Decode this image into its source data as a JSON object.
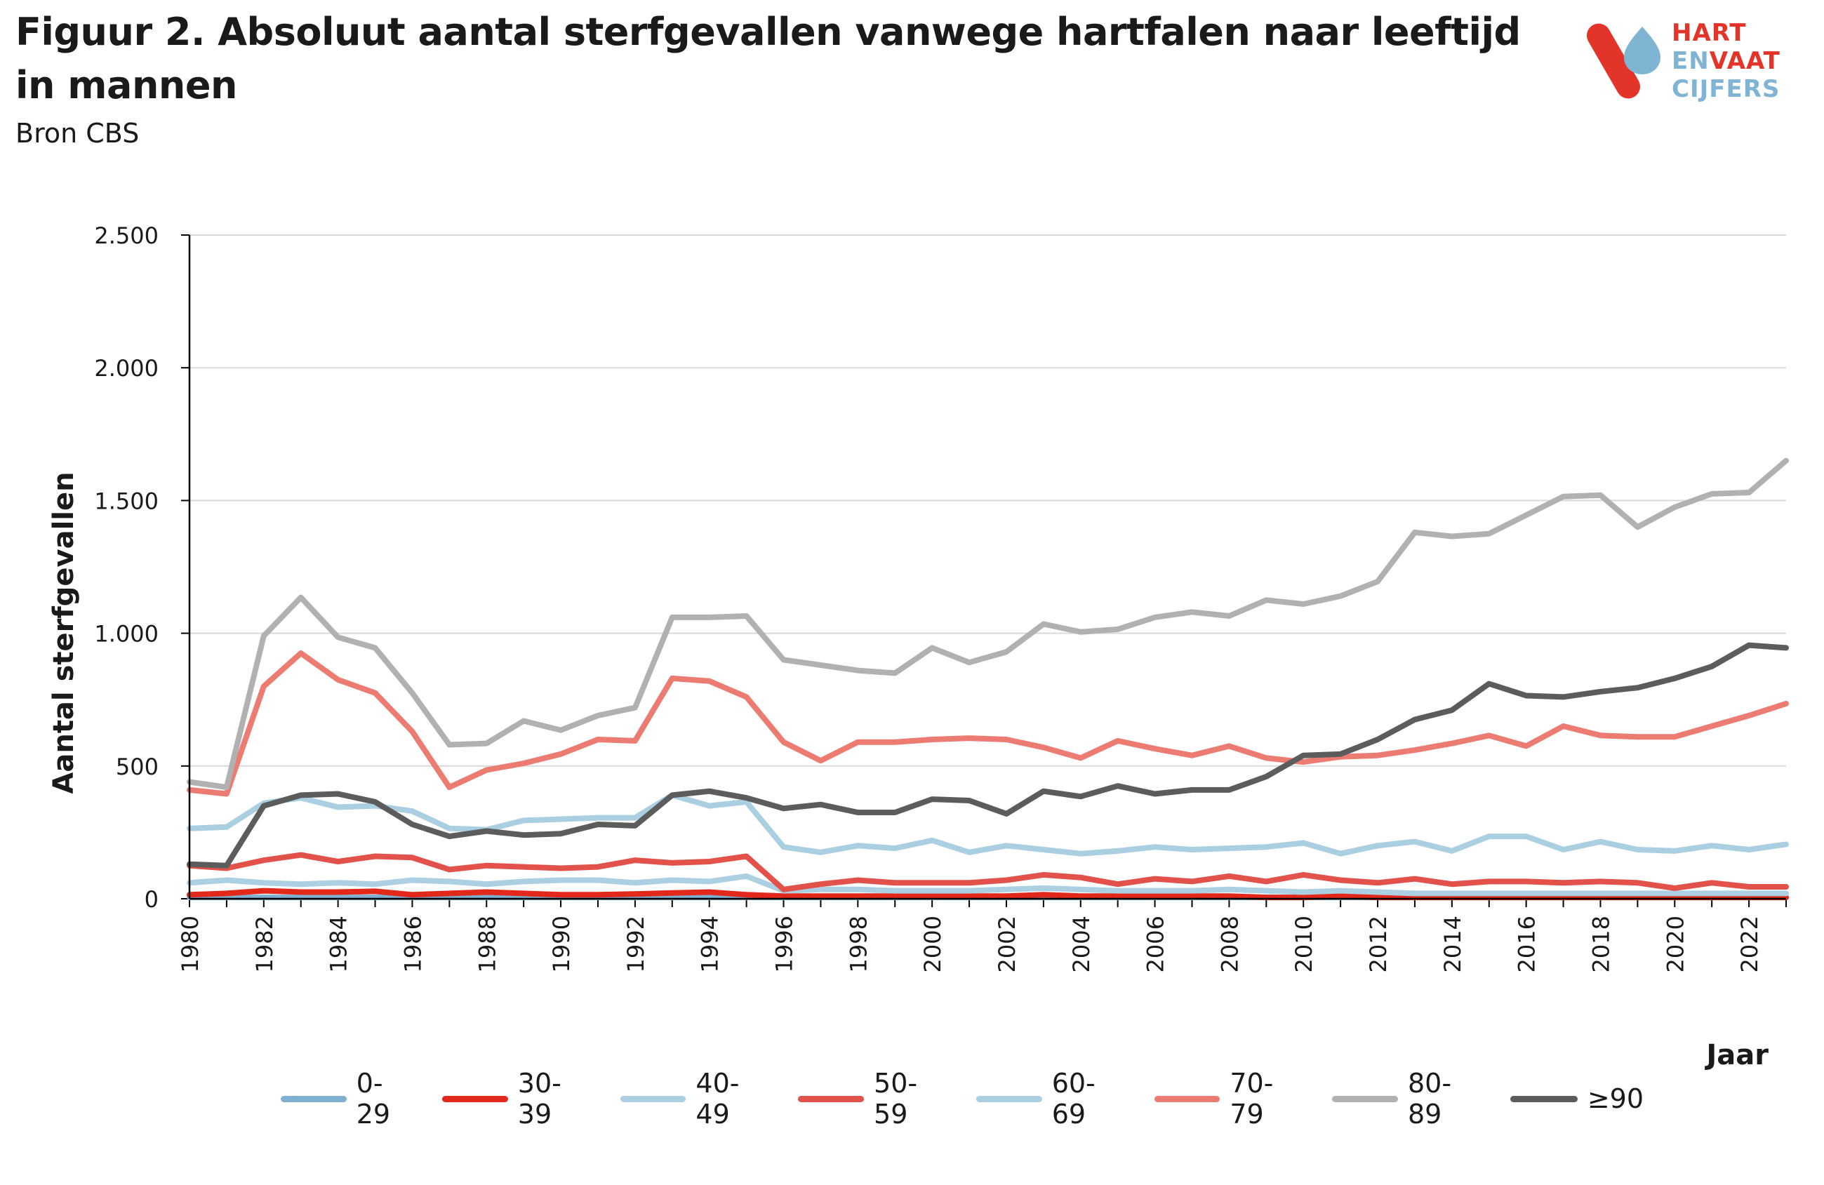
{
  "header": {
    "title": "Figuur 2. Absoluut aantal sterfgevallen vanwege hartfalen naar leeftijd in mannen",
    "subtitle": "Bron CBS"
  },
  "logo": {
    "line1": "HART",
    "line2_a": "EN",
    "line2_b": "VAAT",
    "line3": "CIJFERS",
    "colors": {
      "red": "#e3342a",
      "blue": "#7fb5d3"
    }
  },
  "chart_data": {
    "type": "line",
    "xlabel": "Jaar",
    "ylabel": "Aantal sterfgevallen",
    "ylim": [
      0,
      2500
    ],
    "yticks": [
      0,
      500,
      1000,
      1500,
      2000,
      2500
    ],
    "ytick_labels": [
      "0",
      "500",
      "1.000",
      "1.500",
      "2.000",
      "2.500"
    ],
    "x": [
      1980,
      1981,
      1982,
      1983,
      1984,
      1985,
      1986,
      1987,
      1988,
      1989,
      1990,
      1991,
      1992,
      1993,
      1994,
      1995,
      1996,
      1997,
      1998,
      1999,
      2000,
      2001,
      2002,
      2003,
      2004,
      2005,
      2006,
      2007,
      2008,
      2009,
      2010,
      2011,
      2012,
      2013,
      2014,
      2015,
      2016,
      2017,
      2018,
      2019,
      2020,
      2021,
      2022,
      2023
    ],
    "xtick_labels": [
      "1980",
      "1982",
      "1984",
      "1986",
      "1988",
      "1990",
      "1992",
      "1994",
      "1996",
      "1998",
      "2000",
      "2002",
      "2004",
      "2006",
      "2008",
      "2010",
      "2012",
      "2014",
      "2016",
      "2018",
      "2020",
      "2022"
    ],
    "grid": "horizontal",
    "legend_position": "bottom",
    "series": [
      {
        "name": "0-29",
        "color": "#7fb0cf",
        "values": [
          5,
          5,
          5,
          5,
          5,
          5,
          5,
          5,
          5,
          5,
          5,
          5,
          5,
          5,
          5,
          5,
          5,
          5,
          5,
          5,
          5,
          5,
          5,
          5,
          5,
          5,
          5,
          5,
          5,
          5,
          5,
          5,
          5,
          5,
          5,
          5,
          5,
          5,
          5,
          5,
          5,
          5,
          5,
          5
        ]
      },
      {
        "name": "30-39",
        "color": "#e2281b",
        "values": [
          15,
          20,
          30,
          25,
          25,
          28,
          15,
          20,
          25,
          20,
          15,
          15,
          18,
          22,
          25,
          15,
          10,
          10,
          10,
          10,
          10,
          10,
          10,
          15,
          10,
          10,
          10,
          10,
          10,
          5,
          5,
          10,
          5,
          5,
          5,
          5,
          5,
          5,
          5,
          5,
          5,
          5,
          5,
          5
        ]
      },
      {
        "name": "40-49",
        "color": "#acd0e2",
        "values": [
          60,
          70,
          60,
          55,
          60,
          55,
          70,
          65,
          55,
          65,
          70,
          70,
          60,
          70,
          65,
          85,
          30,
          35,
          35,
          30,
          30,
          30,
          35,
          40,
          35,
          30,
          30,
          30,
          35,
          30,
          25,
          30,
          25,
          20,
          20,
          20,
          20,
          20,
          20,
          20,
          20,
          20,
          20,
          20
        ]
      },
      {
        "name": "50-59",
        "color": "#e2524a",
        "values": [
          125,
          115,
          145,
          165,
          140,
          160,
          155,
          110,
          125,
          120,
          115,
          120,
          145,
          135,
          140,
          160,
          35,
          55,
          70,
          60,
          60,
          60,
          70,
          90,
          80,
          55,
          75,
          65,
          85,
          65,
          90,
          70,
          60,
          75,
          55,
          65,
          65,
          60,
          65,
          60,
          40,
          60,
          45,
          45
        ]
      },
      {
        "name": "60-69",
        "color": "#aacfe1",
        "values": [
          265,
          270,
          360,
          380,
          345,
          350,
          330,
          265,
          260,
          295,
          300,
          305,
          305,
          390,
          350,
          365,
          195,
          175,
          200,
          190,
          220,
          175,
          200,
          185,
          170,
          180,
          195,
          185,
          190,
          195,
          210,
          170,
          200,
          215,
          180,
          235,
          235,
          185,
          215,
          185,
          180,
          200,
          185,
          205
        ]
      },
      {
        "name": "70-79",
        "color": "#ec7b72",
        "values": [
          410,
          395,
          800,
          925,
          825,
          775,
          630,
          420,
          485,
          510,
          545,
          600,
          595,
          830,
          820,
          760,
          590,
          520,
          590,
          590,
          600,
          605,
          600,
          570,
          530,
          595,
          565,
          540,
          575,
          530,
          515,
          535,
          540,
          560,
          585,
          615,
          575,
          650,
          615,
          610,
          610,
          650,
          690,
          735
        ]
      },
      {
        "name": "80-89",
        "color": "#b1b1b1",
        "values": [
          440,
          420,
          990,
          1135,
          985,
          945,
          775,
          580,
          585,
          670,
          635,
          690,
          720,
          1060,
          1060,
          1065,
          900,
          880,
          860,
          850,
          945,
          890,
          930,
          1035,
          1005,
          1015,
          1060,
          1080,
          1065,
          1125,
          1110,
          1140,
          1195,
          1380,
          1365,
          1375,
          1445,
          1515,
          1520,
          1400,
          1475,
          1525,
          1530,
          1650
        ]
      },
      {
        "name": "≥90",
        "color": "#5c5c5c",
        "values": [
          130,
          125,
          350,
          390,
          395,
          365,
          280,
          235,
          255,
          240,
          245,
          280,
          275,
          390,
          405,
          380,
          340,
          355,
          325,
          325,
          375,
          370,
          320,
          405,
          385,
          425,
          395,
          410,
          410,
          460,
          540,
          545,
          600,
          675,
          710,
          810,
          765,
          760,
          780,
          795,
          830,
          875,
          955,
          945
        ]
      }
    ]
  }
}
